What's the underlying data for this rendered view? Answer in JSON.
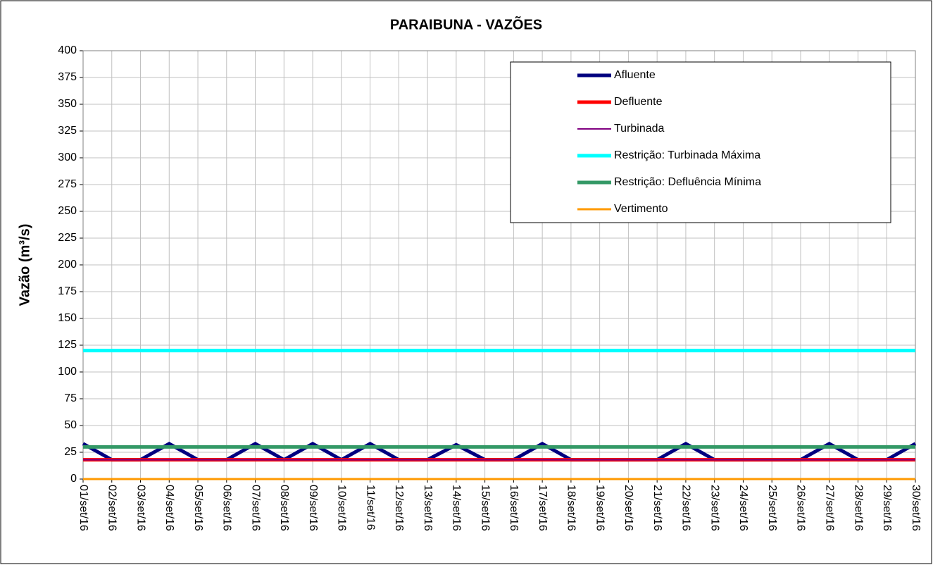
{
  "chart_data": {
    "type": "line",
    "title": "PARAIBUNA - VAZÕES",
    "y_label": "Vazão (m³/s)",
    "categories": [
      "01/set/16",
      "02/set/16",
      "03/set/16",
      "04/set/16",
      "05/set/16",
      "06/set/16",
      "07/set/16",
      "08/set/16",
      "09/set/16",
      "10/set/16",
      "11/set/16",
      "12/set/16",
      "13/set/16",
      "14/set/16",
      "15/set/16",
      "16/set/16",
      "17/set/16",
      "18/set/16",
      "19/set/16",
      "20/set/16",
      "21/set/16",
      "22/set/16",
      "23/set/16",
      "24/set/16",
      "25/set/16",
      "26/set/16",
      "27/set/16",
      "28/set/16",
      "29/set/16",
      "30/set/16"
    ],
    "series": [
      {
        "name": "Afluente",
        "color": "#000080",
        "values": [
          33,
          18,
          18,
          33,
          18,
          18,
          33,
          18,
          33,
          18,
          33,
          18,
          18,
          32,
          18,
          18,
          33,
          18,
          18,
          18,
          18,
          33,
          18,
          18,
          18,
          18,
          33,
          18,
          18,
          33
        ]
      },
      {
        "name": "Defluente",
        "color": "#ff0000",
        "values": [
          18,
          18,
          18,
          18,
          18,
          18,
          18,
          18,
          18,
          18,
          18,
          18,
          18,
          18,
          18,
          18,
          18,
          18,
          18,
          18,
          18,
          18,
          18,
          18,
          18,
          18,
          18,
          18,
          18,
          18
        ]
      },
      {
        "name": "Turbinada",
        "color": "#800080",
        "values": [
          18,
          18,
          18,
          18,
          18,
          18,
          18,
          18,
          18,
          18,
          18,
          18,
          18,
          18,
          18,
          18,
          18,
          18,
          18,
          18,
          18,
          18,
          18,
          18,
          18,
          18,
          18,
          18,
          18,
          18
        ]
      },
      {
        "name": "Restrição: Turbinada Máxima",
        "color": "#00ffff",
        "values": [
          120,
          120,
          120,
          120,
          120,
          120,
          120,
          120,
          120,
          120,
          120,
          120,
          120,
          120,
          120,
          120,
          120,
          120,
          120,
          120,
          120,
          120,
          120,
          120,
          120,
          120,
          120,
          120,
          120,
          120
        ]
      },
      {
        "name": "Restrição: Defluência Mínima",
        "color": "#339966",
        "values": [
          30,
          30,
          30,
          30,
          30,
          30,
          30,
          30,
          30,
          30,
          30,
          30,
          30,
          30,
          30,
          30,
          30,
          30,
          30,
          30,
          30,
          30,
          30,
          30,
          30,
          30,
          30,
          30,
          30,
          30
        ]
      },
      {
        "name": "Vertimento",
        "color": "#ff9900",
        "values": [
          0,
          0,
          0,
          0,
          0,
          0,
          0,
          0,
          0,
          0,
          0,
          0,
          0,
          0,
          0,
          0,
          0,
          0,
          0,
          0,
          0,
          0,
          0,
          0,
          0,
          0,
          0,
          0,
          0,
          0
        ]
      }
    ],
    "ylim": [
      0,
      400
    ],
    "yticks": [
      0,
      25,
      50,
      75,
      100,
      125,
      150,
      175,
      200,
      225,
      250,
      275,
      300,
      325,
      350,
      375,
      400
    ],
    "grid": true,
    "legend": "upper-right"
  }
}
